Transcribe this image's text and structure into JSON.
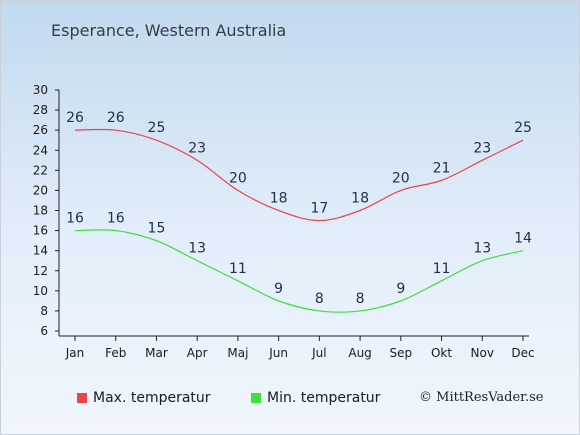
{
  "chart_data": {
    "type": "line",
    "title": "Esperance, Western Australia",
    "categories": [
      "Jan",
      "Feb",
      "Mar",
      "Apr",
      "Maj",
      "Jun",
      "Jul",
      "Aug",
      "Sep",
      "Okt",
      "Nov",
      "Dec"
    ],
    "yticks": [
      6,
      8,
      10,
      12,
      14,
      16,
      18,
      20,
      22,
      24,
      26,
      28,
      30
    ],
    "ylim": [
      6,
      30
    ],
    "grid": false,
    "legend_position": "bottom",
    "series": [
      {
        "name": "Max. temperatur",
        "color": "#e8464a",
        "values": [
          26,
          26,
          25,
          23,
          20,
          18,
          17,
          18,
          20,
          21,
          23,
          25
        ]
      },
      {
        "name": "Min. temperatur",
        "color": "#3de03d",
        "values": [
          16,
          16,
          15,
          13,
          11,
          9,
          8,
          8,
          9,
          11,
          13,
          14
        ]
      }
    ]
  },
  "copyright": "© MittResVader.se"
}
